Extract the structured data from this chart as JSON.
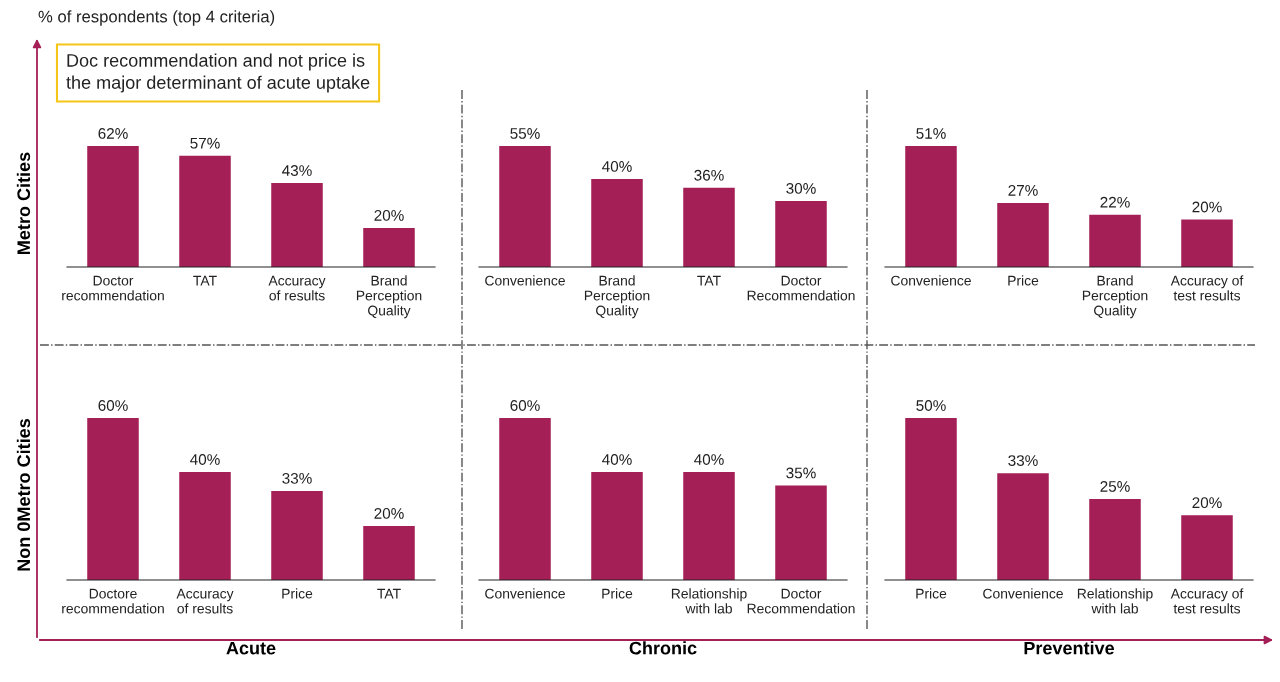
{
  "chart_data": [
    {
      "type": "bar",
      "categories": [
        "Doctor\nrecommendation",
        "TAT",
        "Accuracy\nof results",
        "Brand\nPerception\nQuality"
      ],
      "values": [
        62,
        57,
        43,
        20
      ],
      "value_labels": [
        "62%",
        "57%",
        "43%",
        "20%"
      ],
      "color": "#a31f56",
      "tick_labels": "x",
      "ylabel": "Metro Cities",
      "annotations": [
        "% of respondents (top 4 criteria)",
        "Doc recommendation and not price is\nthe major determinant of acute uptake"
      ]
    },
    {
      "type": "bar",
      "categories": [
        "Convenience",
        "Brand\nPerception\nQuality",
        "TAT",
        "Doctor\nRecommendation"
      ],
      "values": [
        55,
        40,
        36,
        30
      ],
      "value_labels": [
        "55%",
        "40%",
        "36%",
        "30%"
      ],
      "color": "#a31f56",
      "tick_labels": "x"
    },
    {
      "type": "bar",
      "categories": [
        "Convenience",
        "Price",
        "Brand\nPerception\nQuality",
        "Accuracy of\ntest results"
      ],
      "values": [
        51,
        27,
        22,
        20
      ],
      "value_labels": [
        "51%",
        "27%",
        "22%",
        "20%"
      ],
      "color": "#a31f56",
      "tick_labels": "x"
    },
    {
      "type": "bar",
      "categories": [
        "Doctore\nrecommendation",
        "Accuracy\nof results",
        "Price",
        "TAT"
      ],
      "values": [
        60,
        40,
        33,
        20
      ],
      "value_labels": [
        "60%",
        "40%",
        "33%",
        "20%"
      ],
      "color": "#a31f56",
      "tick_labels": "x",
      "ylabel": "Non 0Metro Cities",
      "xlabel": "Acute"
    },
    {
      "type": "bar",
      "categories": [
        "Convenience",
        "Price",
        "Relationship\nwith lab",
        "Doctor\nRecommendation"
      ],
      "values": [
        60,
        40,
        40,
        35
      ],
      "value_labels": [
        "60%",
        "40%",
        "40%",
        "35%"
      ],
      "color": "#a31f56",
      "tick_labels": "x",
      "xlabel": "Chronic"
    },
    {
      "type": "bar",
      "categories": [
        "Price",
        "Convenience",
        "Relationship\nwith lab",
        "Accuracy of\ntest results"
      ],
      "values": [
        50,
        33,
        25,
        20
      ],
      "value_labels": [
        "50%",
        "33%",
        "25%",
        "20%"
      ],
      "color": "#a31f56",
      "tick_labels": "x",
      "xlabel": "Preventive"
    }
  ]
}
